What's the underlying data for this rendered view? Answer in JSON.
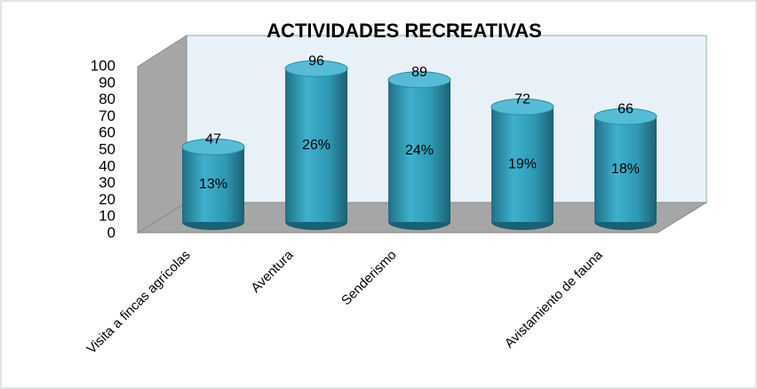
{
  "chart_data": {
    "type": "bar",
    "title": "ACTIVIDADES RECREATIVAS",
    "categories": [
      "Visita a fincas agrícolas",
      "Aventura",
      "Senderismo",
      null,
      "Avistamiento de fauna"
    ],
    "values": [
      47,
      96,
      89,
      72,
      66
    ],
    "percent_labels": [
      "13%",
      "26%",
      "24%",
      "19%",
      "18%"
    ],
    "color": "#2e98b3",
    "ylim": [
      0,
      100
    ],
    "yticks": [
      0,
      10,
      20,
      30,
      40,
      50,
      60,
      70,
      80,
      90,
      100
    ]
  }
}
